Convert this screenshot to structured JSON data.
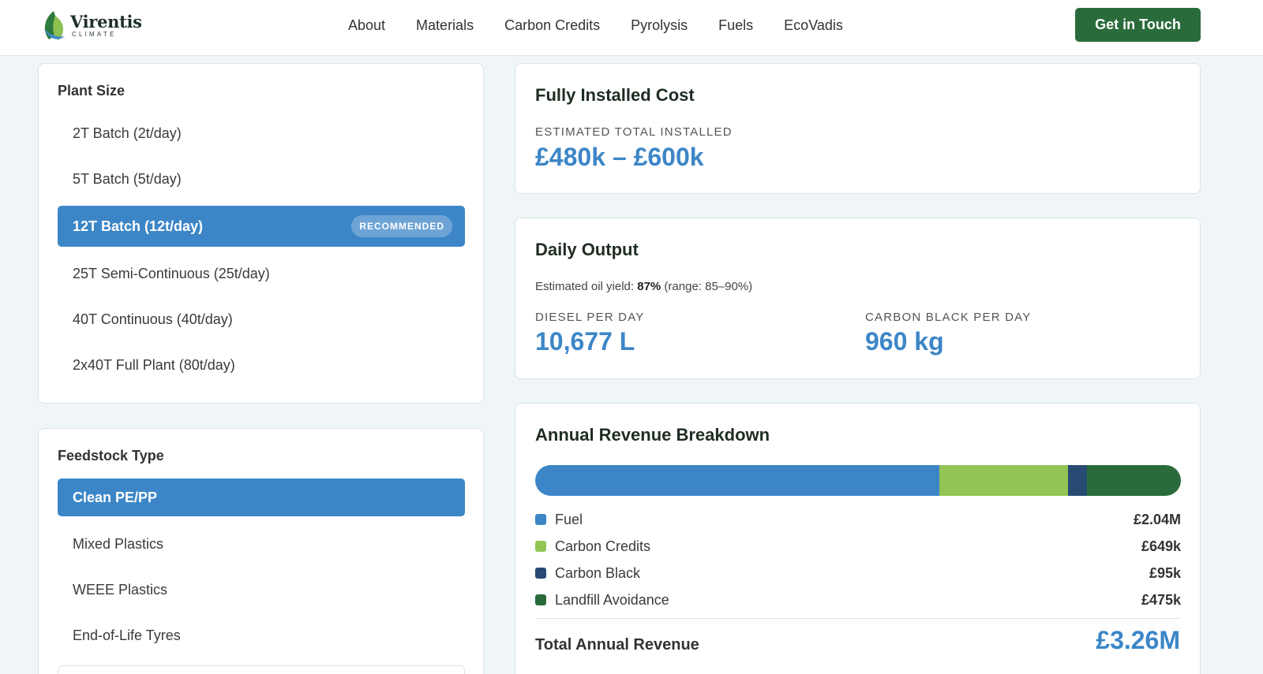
{
  "brand": {
    "name": "Virentis",
    "sub": "CLIMATE"
  },
  "nav": {
    "links": [
      "About",
      "Materials",
      "Carbon Credits",
      "Pyrolysis",
      "Fuels",
      "EcoVadis"
    ],
    "cta": "Get in Touch"
  },
  "colors": {
    "accent": "#3c86c7",
    "brand_green": "#2a6b3b",
    "fuel": "#3c86c7",
    "carbon_credits": "#94c454",
    "carbon_black": "#274a72",
    "landfill": "#2a6b3b"
  },
  "plant_size": {
    "label": "Plant Size",
    "options": [
      "2T Batch (2t/day)",
      "5T Batch (5t/day)",
      "12T Batch (12t/day)",
      "25T Semi-Continuous (25t/day)",
      "40T Continuous (40t/day)",
      "2x40T Full Plant (80t/day)"
    ],
    "selected": "12T Batch (12t/day)",
    "badge": "RECOMMENDED"
  },
  "feedstock": {
    "label": "Feedstock Type",
    "options": [
      "Clean PE/PP",
      "Mixed Plastics",
      "WEEE Plastics",
      "End-of-Life Tyres"
    ],
    "selected": "Clean PE/PP"
  },
  "installed_cost": {
    "title": "Fully Installed Cost",
    "label": "Estimated Total Installed",
    "value": "£480k – £600k"
  },
  "daily_output": {
    "title": "Daily Output",
    "yield_prefix": "Estimated oil yield: ",
    "yield_value": "87%",
    "yield_range": " (range: 85–90%)",
    "diesel_label": "Diesel per day",
    "diesel_value": "10,677 L",
    "carbon_black_label": "Carbon black per day",
    "carbon_black_value": "960 kg"
  },
  "revenue": {
    "title": "Annual Revenue Breakdown",
    "items": [
      {
        "label": "Fuel",
        "value": "£2.04M",
        "amount_k": 2040,
        "color": "#3c86c7"
      },
      {
        "label": "Carbon Credits",
        "value": "£649k",
        "amount_k": 649,
        "color": "#94c454"
      },
      {
        "label": "Carbon Black",
        "value": "£95k",
        "amount_k": 95,
        "color": "#274a72"
      },
      {
        "label": "Landfill Avoidance",
        "value": "£475k",
        "amount_k": 475,
        "color": "#2a6b3b"
      }
    ],
    "total_label": "Total Annual Revenue",
    "total_value": "£3.26M"
  }
}
